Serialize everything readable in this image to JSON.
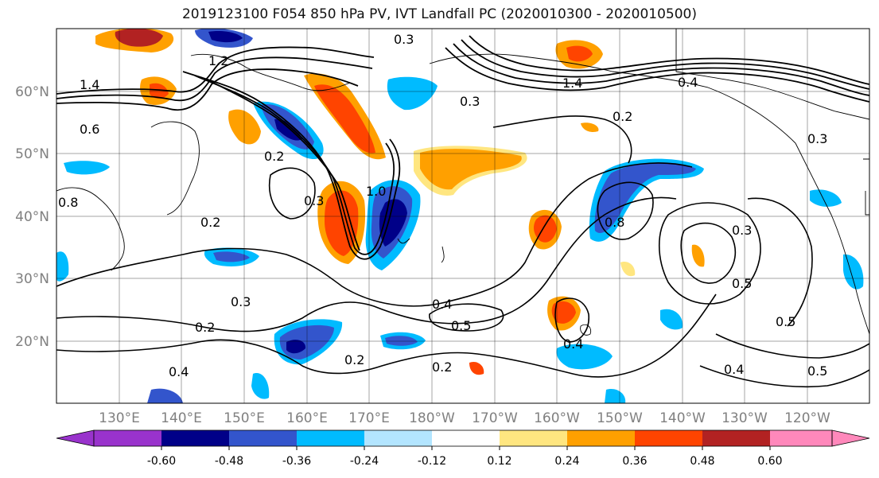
{
  "title": "2019123100 F054 850 hPa PV, IVT Landfall PC (2020010300 - 2020010500)",
  "map": {
    "lat_labels": [
      "20°N",
      "30°N",
      "40°N",
      "50°N",
      "60°N"
    ],
    "lon_labels": [
      "130°E",
      "140°E",
      "150°E",
      "160°E",
      "170°E",
      "180°W",
      "170°W",
      "160°W",
      "150°W",
      "140°W",
      "130°W",
      "120°W"
    ],
    "contour_labels": [
      "0.2",
      "0.3",
      "0.4",
      "0.5",
      "0.6",
      "0.8",
      "1.0",
      "1.2",
      "1.4"
    ],
    "colors": {
      "purple": "#9933cc",
      "navy": "#000088",
      "royal_blue": "#3355cc",
      "deep_sky": "#00bbff",
      "light_blue": "#b3e5ff",
      "white": "#ffffff",
      "light_yellow": "#ffe680",
      "orange": "#ffa000",
      "orange_red": "#ff4400",
      "firebrick": "#b22222",
      "pink": "#ff88bb"
    }
  },
  "colorbar": {
    "tick_labels": [
      "-0.60",
      "-0.48",
      "-0.36",
      "-0.24",
      "-0.12",
      "0.12",
      "0.24",
      "0.36",
      "0.48",
      "0.60"
    ]
  }
}
